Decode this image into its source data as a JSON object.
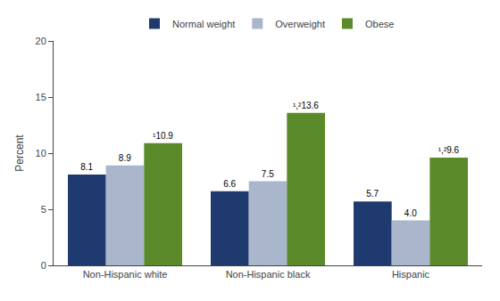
{
  "chart_data": {
    "type": "bar",
    "categories": [
      "Non-Hispanic white",
      "Non-Hispanic black",
      "Hispanic"
    ],
    "series": [
      {
        "name": "Normal weight",
        "color": "#1f3a6e",
        "values": [
          8.1,
          6.6,
          5.7
        ],
        "value_labels": [
          "8.1",
          "6.6",
          "5.7"
        ]
      },
      {
        "name": "Overweight",
        "color": "#aab6cc",
        "values": [
          8.9,
          7.5,
          4.0
        ],
        "value_labels": [
          "8.9",
          "7.5",
          "4.0"
        ]
      },
      {
        "name": "Obese",
        "color": "#5a8a2a",
        "values": [
          10.9,
          13.6,
          9.6
        ],
        "value_labels": [
          "¹10.9",
          "¹,²13.6",
          "¹,²9.6"
        ]
      }
    ],
    "ylabel": "Percent",
    "ylim": [
      0,
      20
    ],
    "yticks": [
      0,
      5,
      10,
      15,
      20
    ],
    "grid": false,
    "legend": "top",
    "data_labels": true
  }
}
